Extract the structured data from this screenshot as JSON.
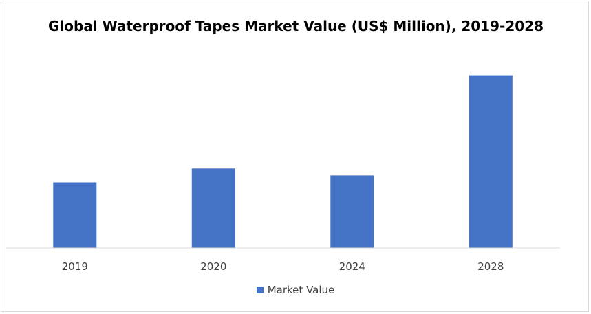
{
  "chart_data": {
    "type": "bar",
    "title": "Global Waterproof Tapes Market Value (US$ Million), 2019-2028",
    "xlabel": "",
    "ylabel": "",
    "categories": [
      "2019",
      "2020",
      "2024",
      "2028"
    ],
    "series": [
      {
        "name": "Market Value",
        "values": [
          38,
          46,
          42,
          100
        ]
      }
    ],
    "ylim": [
      0,
      105
    ],
    "grid": false,
    "legend_position": "bottom",
    "colors": {
      "bar": "#4472c4",
      "axis": "#d9d9d9"
    }
  }
}
